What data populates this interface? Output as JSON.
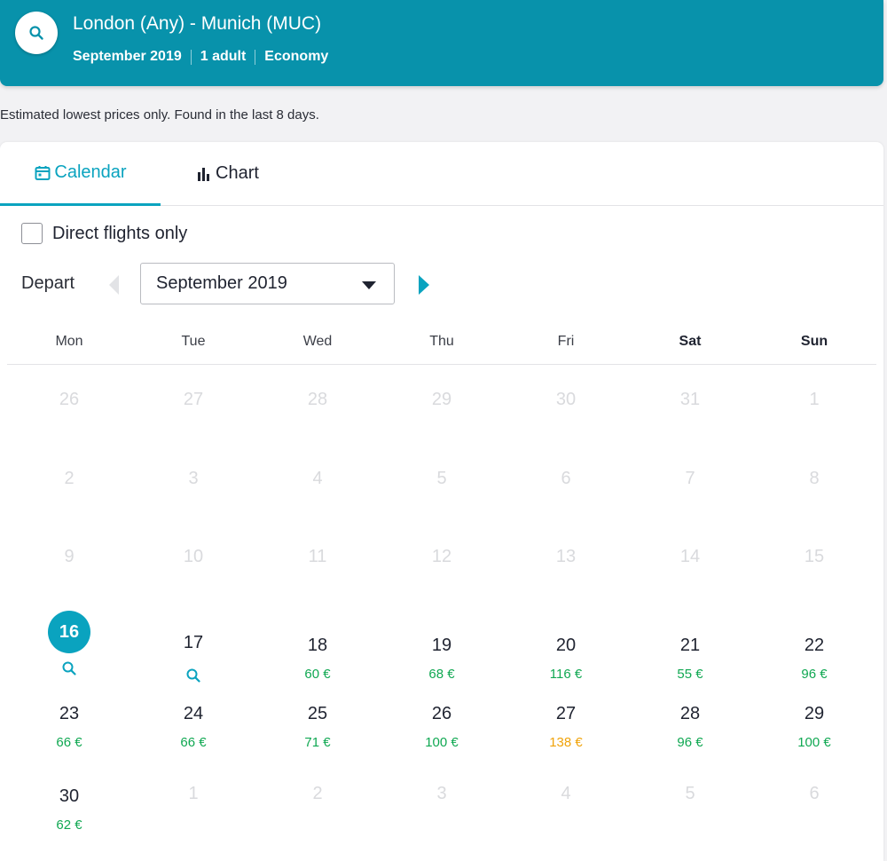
{
  "header": {
    "title": "London (Any) - Munich (MUC)",
    "month": "September 2019",
    "passengers": "1 adult",
    "cabin": "Economy",
    "color": "#0892ab"
  },
  "notice": "Estimated lowest prices only. Found in the last 8 days.",
  "tabs": [
    {
      "label": "Calendar",
      "icon": "calendar-icon",
      "active": true
    },
    {
      "label": "Chart",
      "icon": "bar-chart-icon",
      "active": false
    }
  ],
  "direct_only": {
    "label": "Direct flights only",
    "checked": false
  },
  "depart": {
    "label": "Depart",
    "selected_month": "September 2019"
  },
  "weekdays": [
    "Mon",
    "Tue",
    "Wed",
    "Thu",
    "Fri",
    "Sat",
    "Sun"
  ],
  "weeks": [
    [
      {
        "d": "26",
        "dim": true
      },
      {
        "d": "27",
        "dim": true
      },
      {
        "d": "28",
        "dim": true
      },
      {
        "d": "29",
        "dim": true
      },
      {
        "d": "30",
        "dim": true
      },
      {
        "d": "31",
        "dim": true
      },
      {
        "d": "1",
        "dim": true
      }
    ],
    [
      {
        "d": "2",
        "dim": true
      },
      {
        "d": "3",
        "dim": true
      },
      {
        "d": "4",
        "dim": true
      },
      {
        "d": "5",
        "dim": true
      },
      {
        "d": "6",
        "dim": true
      },
      {
        "d": "7",
        "dim": true
      },
      {
        "d": "8",
        "dim": true
      }
    ],
    [
      {
        "d": "9",
        "dim": true
      },
      {
        "d": "10",
        "dim": true
      },
      {
        "d": "11",
        "dim": true
      },
      {
        "d": "12",
        "dim": true
      },
      {
        "d": "13",
        "dim": true
      },
      {
        "d": "14",
        "dim": true
      },
      {
        "d": "15",
        "dim": true
      }
    ],
    [
      {
        "d": "16",
        "selected": true,
        "search": true
      },
      {
        "d": "17",
        "search": true
      },
      {
        "d": "18",
        "price": "60 €"
      },
      {
        "d": "19",
        "price": "68 €"
      },
      {
        "d": "20",
        "price": "116 €"
      },
      {
        "d": "21",
        "price": "55 €"
      },
      {
        "d": "22",
        "price": "96 €"
      }
    ],
    [
      {
        "d": "23",
        "price": "66 €"
      },
      {
        "d": "24",
        "price": "66 €"
      },
      {
        "d": "25",
        "price": "71 €"
      },
      {
        "d": "26",
        "price": "100 €"
      },
      {
        "d": "27",
        "price": "138 €",
        "tier": "high"
      },
      {
        "d": "28",
        "price": "96 €"
      },
      {
        "d": "29",
        "price": "100 €"
      }
    ],
    [
      {
        "d": "30",
        "price": "62 €"
      },
      {
        "d": "1",
        "dim": true
      },
      {
        "d": "2",
        "dim": true
      },
      {
        "d": "3",
        "dim": true
      },
      {
        "d": "4",
        "dim": true
      },
      {
        "d": "5",
        "dim": true
      },
      {
        "d": "6",
        "dim": true
      }
    ]
  ],
  "colors": {
    "accent": "#0aa3bf",
    "price_low": "#10a852",
    "price_high": "#f0a30a"
  }
}
